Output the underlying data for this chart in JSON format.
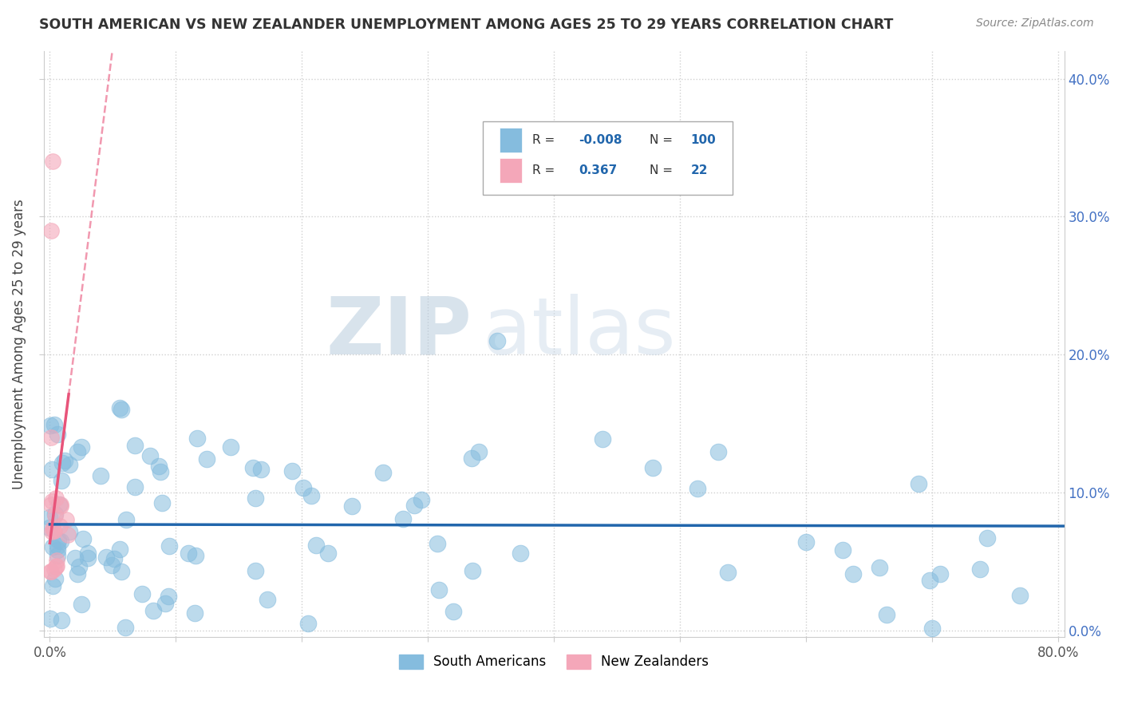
{
  "title": "SOUTH AMERICAN VS NEW ZEALANDER UNEMPLOYMENT AMONG AGES 25 TO 29 YEARS CORRELATION CHART",
  "source": "Source: ZipAtlas.com",
  "ylabel": "Unemployment Among Ages 25 to 29 years",
  "xlim": [
    -0.005,
    0.805
  ],
  "ylim": [
    -0.005,
    0.42
  ],
  "xticks": [
    0.0,
    0.1,
    0.2,
    0.3,
    0.4,
    0.5,
    0.6,
    0.7,
    0.8
  ],
  "xticklabels": [
    "0.0%",
    "",
    "",
    "",
    "",
    "",
    "",
    "",
    "80.0%"
  ],
  "yticks": [
    0.0,
    0.1,
    0.2,
    0.3,
    0.4
  ],
  "yticklabels_left": [
    "",
    "",
    "",
    "",
    ""
  ],
  "yticklabels_right": [
    "0.0%",
    "10.0%",
    "20.0%",
    "30.0%",
    "40.0%"
  ],
  "blue_color": "#85bcde",
  "pink_color": "#f4a7b9",
  "blue_line_color": "#2166ac",
  "pink_line_color": "#e8547a",
  "R_blue": -0.008,
  "N_blue": 100,
  "R_pink": 0.367,
  "N_pink": 22,
  "legend_label_blue": "South Americans",
  "legend_label_pink": "New Zealanders",
  "watermark_zip": "ZIP",
  "watermark_atlas": "atlas",
  "bg_color": "#ffffff",
  "grid_color": "#d0d0d0"
}
